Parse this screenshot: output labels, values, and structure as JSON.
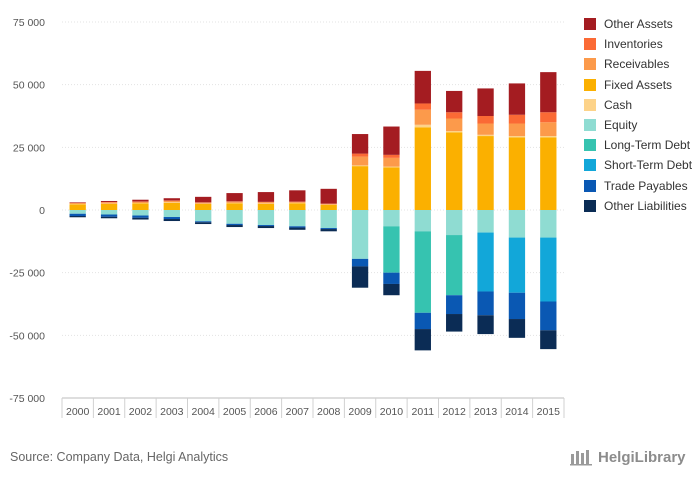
{
  "chart_data": {
    "type": "bar",
    "stacked": true,
    "categories": [
      "2000",
      "2001",
      "2002",
      "2003",
      "2004",
      "2005",
      "2006",
      "2007",
      "2008",
      "2009",
      "2010",
      "2011",
      "2012",
      "2013",
      "2014",
      "2015"
    ],
    "ylim": [
      -75000,
      75000
    ],
    "yticks": [
      75000,
      50000,
      25000,
      0,
      -25000,
      -50000,
      -75000
    ],
    "ytick_labels": [
      "75 000",
      "50 000",
      "25 000",
      "0",
      "-25 000",
      "-50 000",
      "-75 000"
    ],
    "grid": "horizontal",
    "legend_position": "right",
    "asset_series": [
      {
        "name": "Fixed Assets",
        "color": "#fbb000",
        "values": [
          2200,
          2400,
          2600,
          2900,
          2400,
          2700,
          2500,
          2700,
          2000,
          17500,
          17000,
          33000,
          31000,
          29500,
          29000,
          29000
        ]
      },
      {
        "name": "Cash",
        "color": "#fdd389",
        "values": [
          200,
          200,
          200,
          200,
          150,
          150,
          150,
          150,
          150,
          300,
          300,
          1000,
          500,
          500,
          500,
          500
        ]
      },
      {
        "name": "Receivables",
        "color": "#fc9a4b",
        "values": [
          400,
          500,
          500,
          600,
          400,
          500,
          500,
          400,
          300,
          3500,
          3500,
          6000,
          5000,
          4500,
          5000,
          5500
        ]
      },
      {
        "name": "Inventories",
        "color": "#fb6a35",
        "values": [
          100,
          100,
          100,
          100,
          100,
          100,
          100,
          100,
          100,
          1200,
          1200,
          2500,
          2500,
          3000,
          3500,
          4000
        ]
      },
      {
        "name": "Other Assets",
        "color": "#a41c21",
        "values": [
          200,
          400,
          700,
          900,
          2200,
          3300,
          3900,
          4500,
          5900,
          7800,
          11300,
          13000,
          8500,
          11000,
          12500,
          16000
        ]
      }
    ],
    "liability_series": [
      {
        "name": "Equity",
        "color": "#8fdcd2",
        "values": [
          1500,
          1800,
          2200,
          2800,
          4500,
          5500,
          6000,
          6500,
          7200,
          19500,
          6500,
          8500,
          10000,
          9000,
          11000,
          11000
        ]
      },
      {
        "name": "Long-Term Debt",
        "color": "#36c3b0",
        "values": [
          0,
          0,
          0,
          0,
          0,
          0,
          0,
          0,
          0,
          0,
          18500,
          32500,
          24000,
          0,
          0,
          0
        ]
      },
      {
        "name": "Short-Term Debt",
        "color": "#12a7d9",
        "values": [
          0,
          0,
          0,
          0,
          0,
          0,
          0,
          0,
          0,
          0,
          0,
          0,
          0,
          23500,
          22000,
          25500
        ]
      },
      {
        "name": "Trade Payables",
        "color": "#0a58b3",
        "values": [
          900,
          900,
          900,
          800,
          400,
          500,
          400,
          500,
          400,
          3000,
          4500,
          6500,
          7500,
          9500,
          10500,
          11500
        ]
      },
      {
        "name": "Other Liabilities",
        "color": "#0b2c55",
        "values": [
          500,
          600,
          700,
          800,
          700,
          800,
          800,
          900,
          900,
          8500,
          4500,
          8500,
          7000,
          7500,
          7500,
          7500
        ]
      }
    ],
    "legend_order": [
      "Other Assets",
      "Inventories",
      "Receivables",
      "Fixed Assets",
      "Cash",
      "Equity",
      "Long-Term Debt",
      "Short-Term Debt",
      "Trade Payables",
      "Other Liabilities"
    ]
  },
  "footer": {
    "source": "Source: Company Data, Helgi Analytics",
    "brand": "HelgiLibrary"
  }
}
